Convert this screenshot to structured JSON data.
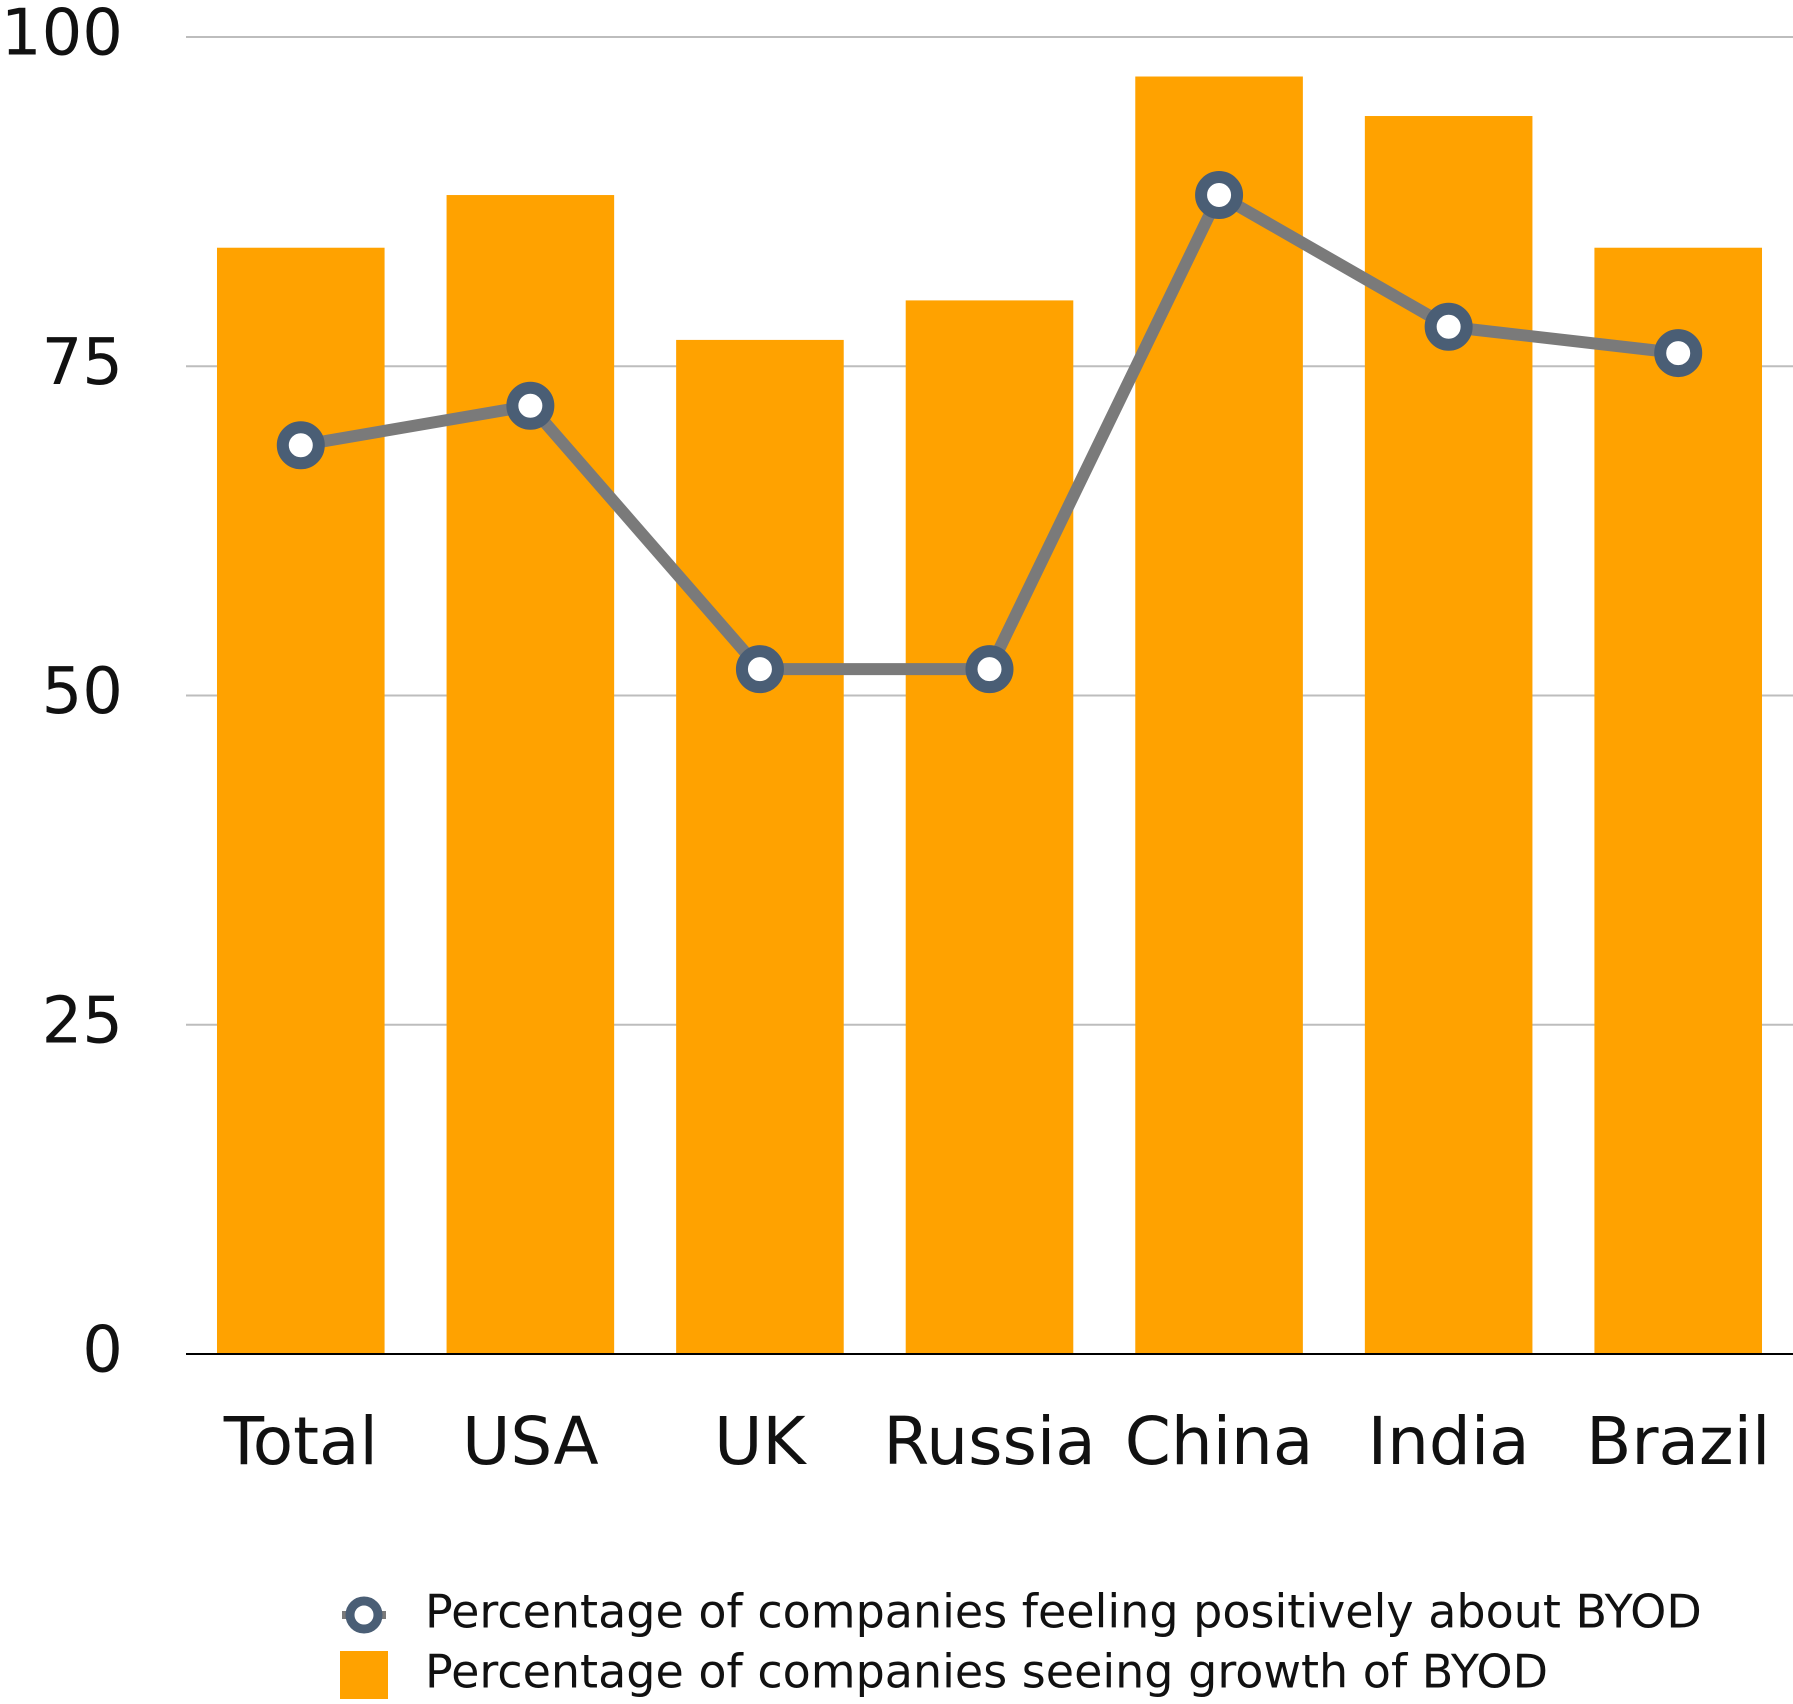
{
  "chart_data": {
    "type": "bar",
    "categories": [
      "Total",
      "USA",
      "UK",
      "Russia",
      "China",
      "India",
      "Brazil"
    ],
    "series": [
      {
        "name": "Percentage of companies feeling positively about BYOD",
        "type": "line",
        "color": "#7a7a7a",
        "marker_color": "#4a5e75",
        "values": [
          69,
          72,
          52,
          52,
          88,
          78,
          76
        ]
      },
      {
        "name": "Percentage of companies seeing growth of BYOD",
        "type": "bar",
        "color": "#ffa200",
        "values": [
          84,
          88,
          77,
          80,
          97,
          94,
          84
        ]
      }
    ],
    "ylim": [
      0,
      100
    ],
    "yticks": [
      0,
      25,
      50,
      75,
      100
    ],
    "grid": true,
    "legend": "bottom"
  }
}
